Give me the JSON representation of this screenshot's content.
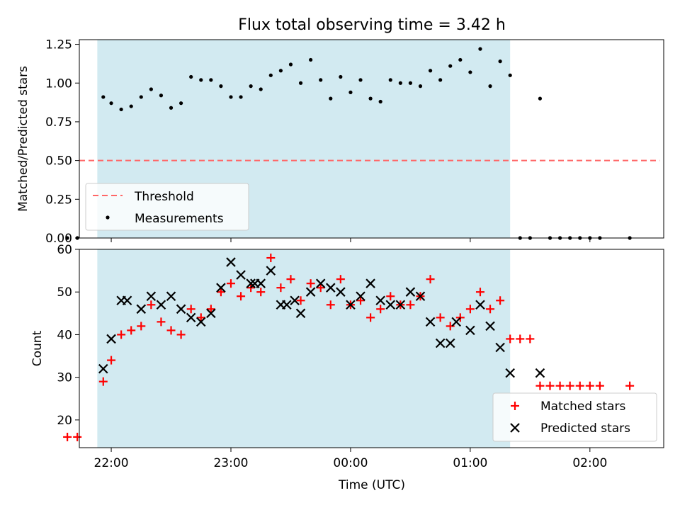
{
  "title": "Flux total observing time = 3.42 h",
  "colors": {
    "shade": "#add8e6",
    "threshold": "#ff6666",
    "measurement": "#000000",
    "matched": "#ff0000",
    "predicted": "#000000"
  },
  "chart_data": [
    {
      "type": "scatter",
      "title": "Flux total observing time = 3.42 h",
      "ylabel": "Matched/Predicted stars",
      "xlabel": "",
      "xlim": [
        "21:44",
        "02:37"
      ],
      "ylim": [
        0,
        1.28
      ],
      "yticks": [
        "0.00",
        "0.25",
        "0.50",
        "0.75",
        "1.00",
        "1.25"
      ],
      "shaded_interval": [
        "21:53",
        "01:20"
      ],
      "legend_position": "lower-left",
      "series": [
        {
          "name": "Threshold",
          "style": "dashed-line",
          "x": [
            "21:44",
            "02:35"
          ],
          "y": [
            0.5,
            0.5
          ]
        },
        {
          "name": "Measurements",
          "style": "dot",
          "x": [
            "21:38",
            "21:43",
            "21:56",
            "22:00",
            "22:05",
            "22:10",
            "22:15",
            "22:20",
            "22:25",
            "22:30",
            "22:35",
            "22:40",
            "22:45",
            "22:50",
            "22:55",
            "23:00",
            "23:05",
            "23:10",
            "23:15",
            "23:20",
            "23:25",
            "23:30",
            "23:35",
            "23:40",
            "23:45",
            "23:50",
            "23:55",
            "24:00",
            "24:05",
            "24:10",
            "24:15",
            "24:20",
            "24:25",
            "24:30",
            "24:35",
            "24:40",
            "24:45",
            "24:50",
            "24:55",
            "25:00",
            "25:05",
            "25:10",
            "25:15",
            "25:20",
            "25:25",
            "25:30",
            "25:35",
            "25:40",
            "25:45",
            "25:50",
            "25:55",
            "26:00",
            "26:05",
            "26:20"
          ],
          "y": [
            0,
            0,
            0.91,
            0.87,
            0.83,
            0.85,
            0.91,
            0.96,
            0.92,
            0.84,
            0.87,
            1.04,
            1.02,
            1.02,
            0.98,
            0.91,
            0.91,
            0.98,
            0.96,
            1.05,
            1.08,
            1.12,
            1.0,
            1.15,
            1.02,
            0.9,
            1.04,
            0.94,
            1.02,
            0.9,
            0.88,
            1.02,
            1.0,
            1.0,
            0.98,
            1.08,
            1.02,
            1.11,
            1.15,
            1.07,
            1.22,
            0.98,
            1.14,
            1.05,
            0,
            0,
            0.9,
            0,
            0,
            0,
            0,
            0,
            0,
            0
          ]
        }
      ]
    },
    {
      "type": "scatter",
      "xlabel": "Time (UTC)",
      "ylabel": "Count",
      "xlim": [
        "21:44",
        "02:37"
      ],
      "ylim": [
        13.5,
        60
      ],
      "xticks": [
        "22:00",
        "23:00",
        "00:00",
        "01:00",
        "02:00"
      ],
      "yticks": [
        "20",
        "30",
        "40",
        "50",
        "60"
      ],
      "shaded_interval": [
        "21:53",
        "01:20"
      ],
      "legend_position": "lower-right",
      "series": [
        {
          "name": "Matched stars",
          "marker": "plus",
          "x": [
            "21:38",
            "21:43",
            "21:56",
            "22:00",
            "22:05",
            "22:10",
            "22:15",
            "22:20",
            "22:25",
            "22:30",
            "22:35",
            "22:40",
            "22:45",
            "22:50",
            "22:55",
            "23:00",
            "23:05",
            "23:10",
            "23:15",
            "23:20",
            "23:25",
            "23:30",
            "23:35",
            "23:40",
            "23:45",
            "23:50",
            "23:55",
            "24:00",
            "24:05",
            "24:10",
            "24:15",
            "24:20",
            "24:25",
            "24:30",
            "24:35",
            "24:40",
            "24:45",
            "24:50",
            "24:55",
            "25:00",
            "25:05",
            "25:10",
            "25:15",
            "25:20",
            "25:25",
            "25:30",
            "25:35",
            "25:40",
            "25:45",
            "25:50",
            "25:55",
            "26:00",
            "26:05",
            "26:20"
          ],
          "y": [
            16,
            16,
            29,
            34,
            40,
            41,
            42,
            47,
            43,
            41,
            40,
            46,
            44,
            46,
            50,
            52,
            49,
            51,
            50,
            58,
            51,
            53,
            48,
            52,
            51,
            47,
            53,
            47,
            48,
            44,
            46,
            49,
            47,
            47,
            49,
            53,
            44,
            42,
            44,
            46,
            50,
            46,
            48,
            39,
            39,
            39,
            28,
            28,
            28,
            28,
            28,
            28,
            28,
            28
          ]
        },
        {
          "name": "Predicted stars",
          "marker": "x",
          "x": [
            "21:56",
            "22:00",
            "22:05",
            "22:08",
            "22:15",
            "22:20",
            "22:25",
            "22:30",
            "22:35",
            "22:40",
            "22:45",
            "22:50",
            "22:55",
            "23:00",
            "23:05",
            "23:10",
            "23:12",
            "23:15",
            "23:20",
            "23:25",
            "23:28",
            "23:32",
            "23:35",
            "23:40",
            "23:45",
            "23:50",
            "23:55",
            "24:00",
            "24:05",
            "24:10",
            "24:15",
            "24:20",
            "24:25",
            "24:30",
            "24:35",
            "24:40",
            "24:45",
            "24:50",
            "24:53",
            "25:00",
            "25:05",
            "25:10",
            "25:15",
            "25:20",
            "25:35"
          ],
          "y": [
            32,
            39,
            48,
            48,
            46,
            49,
            47,
            49,
            46,
            44,
            43,
            45,
            51,
            57,
            54,
            52,
            52,
            52,
            55,
            47,
            47,
            48,
            45,
            50,
            52,
            51,
            50,
            47,
            49,
            52,
            48,
            47,
            47,
            50,
            49,
            43,
            38,
            38,
            43,
            41,
            47,
            42,
            37,
            31,
            31
          ]
        }
      ]
    }
  ]
}
